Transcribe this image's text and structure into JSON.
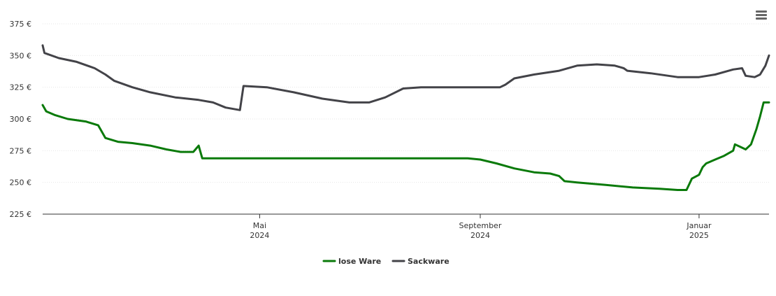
{
  "chart_data": {
    "type": "line",
    "title": "",
    "xlabel": "",
    "ylabel": "",
    "ylim": [
      225,
      375
    ],
    "y_ticks": [
      225,
      250,
      275,
      300,
      325,
      350,
      375
    ],
    "y_tick_labels": [
      "225 €",
      "250 €",
      "275 €",
      "300 €",
      "325 €",
      "350 €",
      "375 €"
    ],
    "xlim": [
      "2024-01-01",
      "2025-02-09"
    ],
    "x_ticks": [
      {
        "date": "2024-05-01",
        "line1": "Mai",
        "line2": "2024"
      },
      {
        "date": "2024-09-01",
        "line1": "September",
        "line2": "2024"
      },
      {
        "date": "2025-01-01",
        "line1": "Januar",
        "line2": "2025"
      }
    ],
    "grid": true,
    "legend_position": "bottom-center",
    "series": [
      {
        "name": "lose Ware",
        "color": "#0a7a0a",
        "points": [
          [
            "2024-01-01",
            311
          ],
          [
            "2024-01-03",
            306
          ],
          [
            "2024-01-08",
            303
          ],
          [
            "2024-01-15",
            300
          ],
          [
            "2024-01-25",
            298
          ],
          [
            "2024-02-01",
            295
          ],
          [
            "2024-02-05",
            285
          ],
          [
            "2024-02-12",
            282
          ],
          [
            "2024-02-20",
            281
          ],
          [
            "2024-03-01",
            279
          ],
          [
            "2024-03-10",
            276
          ],
          [
            "2024-03-18",
            274
          ],
          [
            "2024-03-25",
            274
          ],
          [
            "2024-03-28",
            279
          ],
          [
            "2024-03-30",
            269
          ],
          [
            "2024-04-15",
            269
          ],
          [
            "2024-05-15",
            269
          ],
          [
            "2024-06-15",
            269
          ],
          [
            "2024-07-15",
            269
          ],
          [
            "2024-08-01",
            269
          ],
          [
            "2024-08-25",
            269
          ],
          [
            "2024-09-01",
            268
          ],
          [
            "2024-09-10",
            265
          ],
          [
            "2024-09-20",
            261
          ],
          [
            "2024-10-01",
            258
          ],
          [
            "2024-10-10",
            257
          ],
          [
            "2024-10-15",
            255
          ],
          [
            "2024-10-18",
            251
          ],
          [
            "2024-10-25",
            250
          ],
          [
            "2024-11-10",
            248
          ],
          [
            "2024-11-25",
            246
          ],
          [
            "2024-12-10",
            245
          ],
          [
            "2024-12-20",
            244
          ],
          [
            "2024-12-25",
            244
          ],
          [
            "2024-12-28",
            253
          ],
          [
            "2025-01-01",
            256
          ],
          [
            "2025-01-03",
            262
          ],
          [
            "2025-01-05",
            265
          ],
          [
            "2025-01-10",
            268
          ],
          [
            "2025-01-15",
            271
          ],
          [
            "2025-01-20",
            275
          ],
          [
            "2025-01-21",
            280
          ],
          [
            "2025-01-24",
            278
          ],
          [
            "2025-01-27",
            276
          ],
          [
            "2025-01-30",
            280
          ],
          [
            "2025-02-02",
            292
          ],
          [
            "2025-02-04",
            302
          ],
          [
            "2025-02-06",
            313
          ],
          [
            "2025-02-09",
            313
          ]
        ]
      },
      {
        "name": "Sackware",
        "color": "#434348",
        "points": [
          [
            "2024-01-01",
            358
          ],
          [
            "2024-01-02",
            352
          ],
          [
            "2024-01-10",
            348
          ],
          [
            "2024-01-20",
            345
          ],
          [
            "2024-01-30",
            340
          ],
          [
            "2024-02-05",
            335
          ],
          [
            "2024-02-10",
            330
          ],
          [
            "2024-02-20",
            325
          ],
          [
            "2024-03-01",
            321
          ],
          [
            "2024-03-15",
            317
          ],
          [
            "2024-03-28",
            315
          ],
          [
            "2024-04-05",
            313
          ],
          [
            "2024-04-12",
            309
          ],
          [
            "2024-04-20",
            307
          ],
          [
            "2024-04-22",
            326
          ],
          [
            "2024-05-05",
            325
          ],
          [
            "2024-05-20",
            321
          ],
          [
            "2024-06-05",
            316
          ],
          [
            "2024-06-20",
            313
          ],
          [
            "2024-07-01",
            313
          ],
          [
            "2024-07-10",
            317
          ],
          [
            "2024-07-20",
            324
          ],
          [
            "2024-07-30",
            325
          ],
          [
            "2024-08-20",
            325
          ],
          [
            "2024-09-10",
            325
          ],
          [
            "2024-09-12",
            325
          ],
          [
            "2024-09-15",
            327
          ],
          [
            "2024-09-20",
            332
          ],
          [
            "2024-10-01",
            335
          ],
          [
            "2024-10-15",
            338
          ],
          [
            "2024-10-25",
            342
          ],
          [
            "2024-11-05",
            343
          ],
          [
            "2024-11-15",
            342
          ],
          [
            "2024-11-20",
            340
          ],
          [
            "2024-11-22",
            338
          ],
          [
            "2024-12-05",
            336
          ],
          [
            "2024-12-20",
            333
          ],
          [
            "2025-01-01",
            333
          ],
          [
            "2025-01-10",
            335
          ],
          [
            "2025-01-20",
            339
          ],
          [
            "2025-01-25",
            340
          ],
          [
            "2025-01-27",
            334
          ],
          [
            "2025-02-01",
            333
          ],
          [
            "2025-02-04",
            335
          ],
          [
            "2025-02-07",
            342
          ],
          [
            "2025-02-09",
            350
          ]
        ]
      }
    ]
  },
  "icons": {
    "menu": "menu-icon"
  }
}
